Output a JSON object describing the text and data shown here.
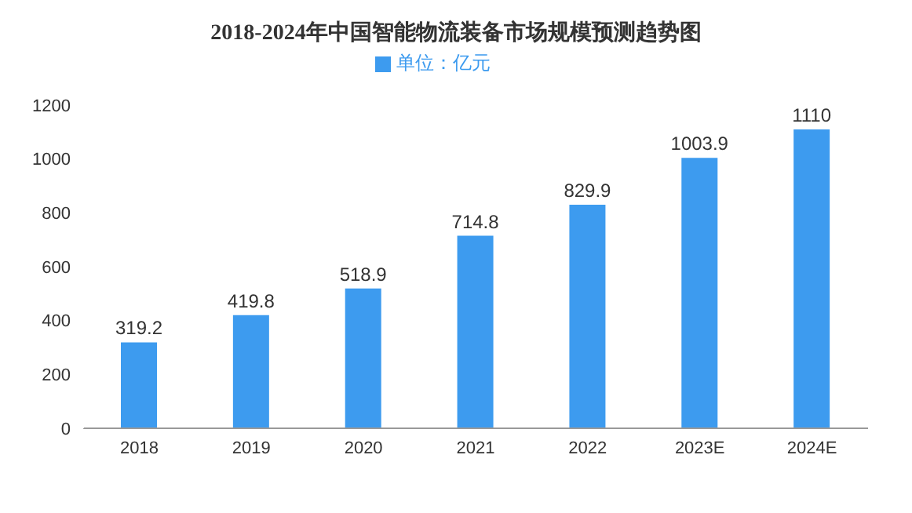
{
  "chart_data": {
    "type": "bar",
    "title": "2018-2024年中国智能物流装备市场规模预测趋势图",
    "categories": [
      "2018",
      "2019",
      "2020",
      "2021",
      "2022",
      "2023E",
      "2024E"
    ],
    "series": [
      {
        "name": "单位：亿元",
        "color": "#3d9bef",
        "values": [
          319.2,
          419.8,
          518.9,
          714.8,
          829.9,
          1003.9,
          1110
        ]
      }
    ],
    "ylim": [
      0,
      1200
    ],
    "yticks": [
      0,
      200,
      400,
      600,
      800,
      1000,
      1200
    ],
    "grid": false,
    "legend": "top",
    "data_labels": true
  }
}
